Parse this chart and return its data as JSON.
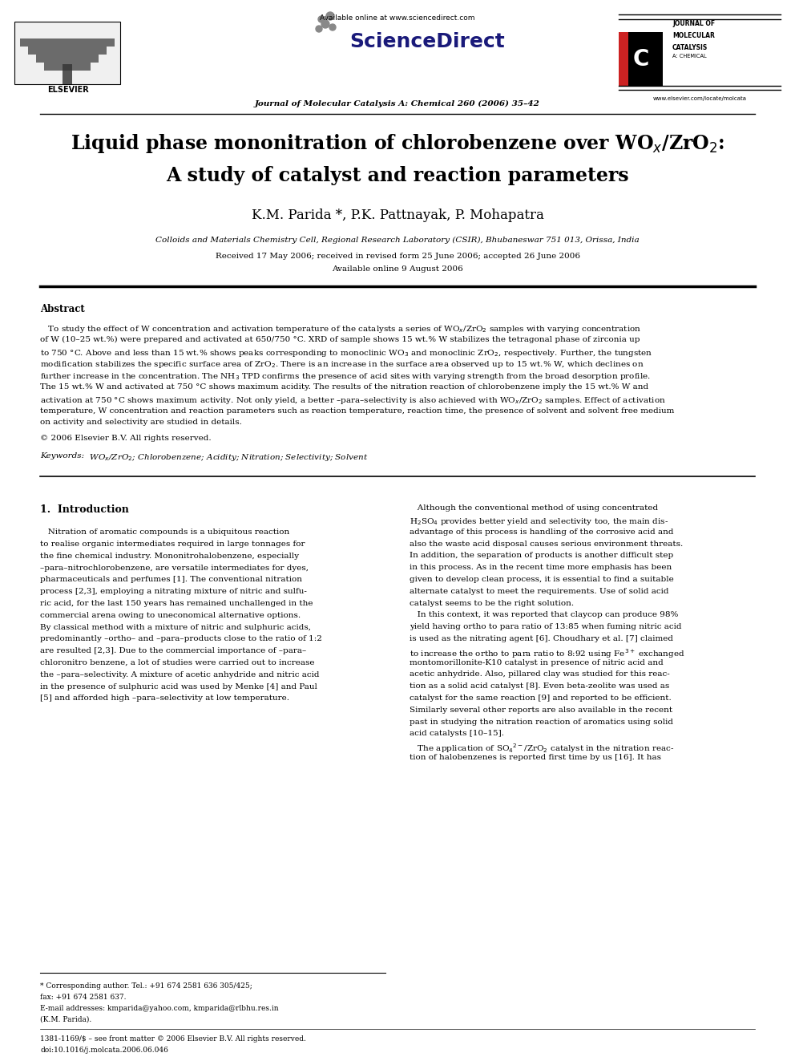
{
  "page_width": 9.92,
  "page_height": 13.23,
  "bg_color": "#ffffff",
  "available_online": "Available online at www.sciencedirect.com",
  "journal_line": "Journal of Molecular Catalysis A: Chemical 260 (2006) 35–42",
  "elsevier_label": "ELSEVIER",
  "website": "www.elsevier.com/locate/molcata",
  "title_line1": "Liquid phase mononitration of chlorobenzene over WO$_x$/ZrO$_2$:",
  "title_line2": "A study of catalyst and reaction parameters",
  "authors": "K.M. Parida *, P.K. Pattnayak, P. Mohapatra",
  "affiliation": "Colloids and Materials Chemistry Cell, Regional Research Laboratory (CSIR), Bhubaneswar 751 013, Orissa, India",
  "received": "Received 17 May 2006; received in revised form 25 June 2006; accepted 26 June 2006",
  "available": "Available online 9 August 2006",
  "abstract_heading": "Abstract",
  "copyright": "© 2006 Elsevier B.V. All rights reserved.",
  "keywords_label": "Keywords:",
  "keywords_body": "  WO$_x$/ZrO$_2$; Chlorobenzene; Acidity; Nitration; Selectivity; Solvent",
  "intro_heading": "1.  Introduction",
  "footnote1": "* Corresponding author. Tel.: +91 674 2581 636 305/425;",
  "footnote2": "fax: +91 674 2581 637.",
  "footnote3": "E-mail addresses: kmparida@yahoo.com, kmparida@rlbhu.res.in",
  "footnote4": "(K.M. Parida).",
  "footer_issn": "1381-1169/$ – see front matter © 2006 Elsevier B.V. All rights reserved.",
  "footer_doi": "doi:10.1016/j.molcata.2006.06.046"
}
